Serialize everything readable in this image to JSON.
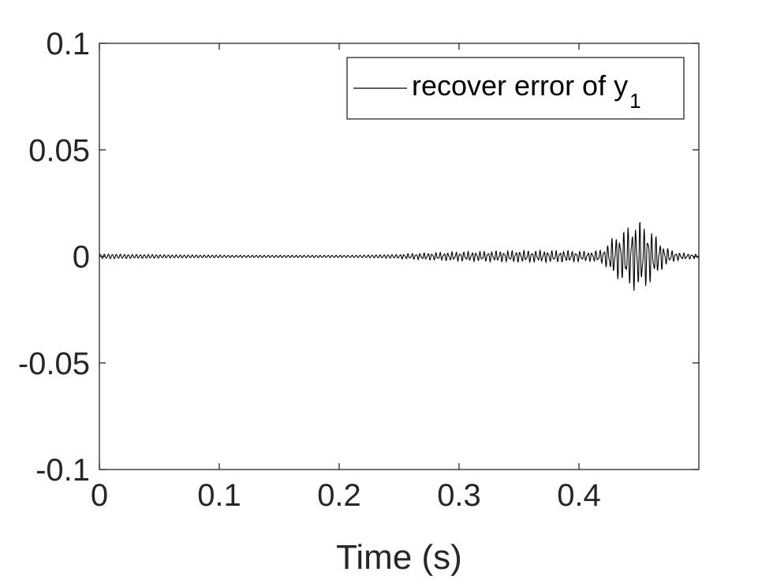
{
  "chart_data": {
    "type": "line",
    "title": "",
    "xlabel": "Time (s)",
    "ylabel": "",
    "xlim": [
      0,
      0.5
    ],
    "ylim": [
      -0.1,
      0.1
    ],
    "xticks": [
      0,
      0.1,
      0.2,
      0.3,
      0.4
    ],
    "xtick_labels": [
      "0",
      "0.1",
      "0.2",
      "0.3",
      "0.4"
    ],
    "yticks": [
      -0.1,
      -0.05,
      0,
      0.05,
      0.1
    ],
    "ytick_labels": [
      "-0.1",
      "-0.05",
      "0",
      "0.05",
      "0.1"
    ],
    "grid": false,
    "legend": {
      "placement": "top-right",
      "entries": [
        {
          "text": "recover error of y",
          "subscript": "1"
        }
      ]
    },
    "series": [
      {
        "name": "recover error of y1",
        "color": "#000000",
        "x": [
          0,
          0.01,
          0.02,
          0.03,
          0.04,
          0.05,
          0.06,
          0.07,
          0.08,
          0.09,
          0.1,
          0.11,
          0.12,
          0.13,
          0.14,
          0.15,
          0.16,
          0.17,
          0.18,
          0.19,
          0.2,
          0.21,
          0.22,
          0.23,
          0.24,
          0.25,
          0.26,
          0.27,
          0.28,
          0.29,
          0.3,
          0.31,
          0.32,
          0.33,
          0.34,
          0.35,
          0.36,
          0.37,
          0.38,
          0.39,
          0.4,
          0.41,
          0.42,
          0.425,
          0.43,
          0.435,
          0.44,
          0.445,
          0.45,
          0.455,
          0.46,
          0.465,
          0.47,
          0.475,
          0.48,
          0.485,
          0.49,
          0.495,
          0.5
        ],
        "envelope": [
          0.0012,
          0.0012,
          0.0011,
          0.001,
          0.001,
          0.0009,
          0.0008,
          0.0008,
          0.0007,
          0.0007,
          0.0007,
          0.0006,
          0.0006,
          0.0006,
          0.0006,
          0.0006,
          0.0006,
          0.0006,
          0.0006,
          0.0006,
          0.0006,
          0.0006,
          0.0007,
          0.0008,
          0.0009,
          0.001,
          0.0012,
          0.0014,
          0.0016,
          0.0018,
          0.002,
          0.002,
          0.0021,
          0.0022,
          0.0023,
          0.0024,
          0.0024,
          0.0024,
          0.0024,
          0.0024,
          0.0022,
          0.002,
          0.003,
          0.006,
          0.009,
          0.01,
          0.012,
          0.014,
          0.015,
          0.013,
          0.011,
          0.008,
          0.005,
          0.003,
          0.002,
          0.0015,
          0.0012,
          0.001,
          0.001
        ]
      }
    ]
  }
}
